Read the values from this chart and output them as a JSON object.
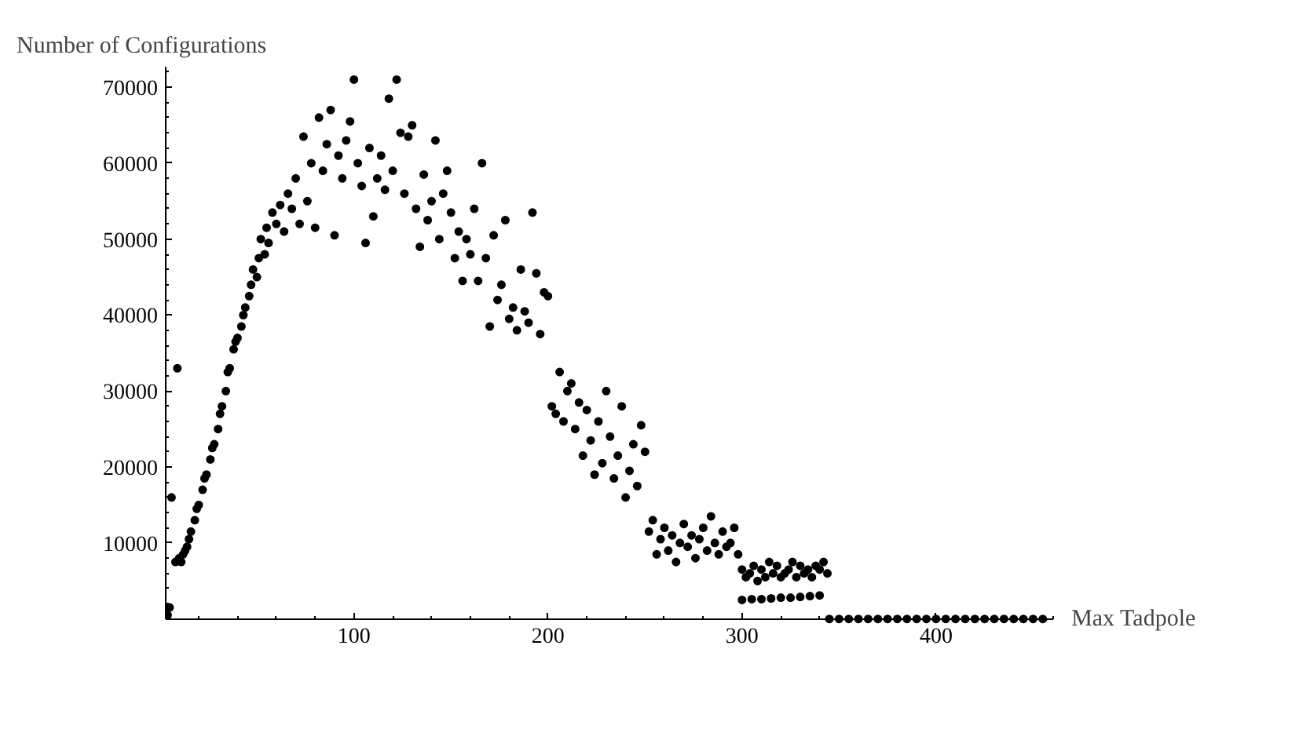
{
  "chart_data": {
    "type": "scatter",
    "xlabel": "Max Tadpole",
    "ylabel": "Number of Configurations",
    "xlim": [
      3,
      460
    ],
    "ylim": [
      0,
      72700
    ],
    "xticks": [
      100,
      200,
      300,
      400
    ],
    "yticks": [
      10000,
      20000,
      30000,
      40000,
      50000,
      60000,
      70000
    ],
    "grid": false,
    "marker": "circle",
    "series": [
      {
        "color": "#000000",
        "x": [
          4,
          5,
          6,
          8,
          9,
          10,
          11,
          12,
          13,
          14,
          15,
          16,
          18,
          19,
          20,
          22,
          23,
          24,
          26,
          27,
          28,
          30,
          31,
          32,
          34,
          35,
          36,
          38,
          39,
          40,
          42,
          43,
          44,
          46,
          47,
          48,
          50,
          51,
          52,
          54,
          55,
          56,
          58,
          60,
          62,
          64,
          66,
          68,
          70,
          72,
          74,
          76,
          78,
          80,
          82,
          84,
          86,
          88,
          90,
          92,
          94,
          96,
          98,
          100,
          102,
          104,
          106,
          108,
          110,
          112,
          114,
          116,
          118,
          120,
          122,
          124,
          126,
          128,
          130,
          132,
          134,
          136,
          138,
          140,
          142,
          144,
          146,
          148,
          150,
          152,
          154,
          156,
          158,
          160,
          162,
          164,
          166,
          168,
          170,
          172,
          174,
          176,
          178,
          180,
          182,
          184,
          186,
          188,
          190,
          192,
          194,
          196,
          198,
          200,
          202,
          204,
          206,
          208,
          210,
          212,
          214,
          216,
          218,
          220,
          222,
          224,
          226,
          228,
          230,
          232,
          234,
          236,
          238,
          240,
          242,
          244,
          246,
          248,
          250,
          252,
          254,
          256,
          258,
          260,
          262,
          264,
          266,
          268,
          270,
          272,
          274,
          276,
          278,
          280,
          282,
          284,
          286,
          288,
          290,
          292,
          294,
          296,
          298,
          300,
          302,
          304,
          306,
          308,
          310,
          312,
          314,
          316,
          318,
          320,
          322,
          324,
          326,
          328,
          330,
          332,
          334,
          336,
          338,
          340,
          342,
          344,
          300,
          305,
          310,
          315,
          320,
          325,
          330,
          335,
          340,
          345,
          350,
          355,
          360,
          365,
          370,
          375,
          380,
          385,
          390,
          395,
          400,
          405,
          410,
          415,
          420,
          425,
          430,
          435,
          440,
          445,
          450,
          455
        ],
        "values": [
          500,
          1500,
          16000,
          7500,
          33000,
          8000,
          7500,
          8500,
          9000,
          9500,
          10500,
          11500,
          13000,
          14500,
          15000,
          17000,
          18500,
          19000,
          21000,
          22500,
          23000,
          25000,
          27000,
          28000,
          30000,
          32500,
          33000,
          35500,
          36500,
          37000,
          38500,
          40000,
          41000,
          42500,
          44000,
          46000,
          45000,
          47500,
          50000,
          48000,
          51500,
          49500,
          53500,
          52000,
          54500,
          51000,
          56000,
          54000,
          58000,
          52000,
          63500,
          55000,
          60000,
          51500,
          66000,
          59000,
          62500,
          67000,
          50500,
          61000,
          58000,
          63000,
          65500,
          71000,
          60000,
          57000,
          49500,
          62000,
          53000,
          58000,
          61000,
          56500,
          68500,
          59000,
          71000,
          64000,
          56000,
          63500,
          65000,
          54000,
          49000,
          58500,
          52500,
          55000,
          63000,
          50000,
          56000,
          59000,
          53500,
          47500,
          51000,
          44500,
          50000,
          48000,
          54000,
          44500,
          60000,
          47500,
          38500,
          50500,
          42000,
          44000,
          52500,
          39500,
          41000,
          38000,
          46000,
          40500,
          39000,
          53500,
          45500,
          37500,
          43000,
          42500,
          28000,
          27000,
          32500,
          26000,
          30000,
          31000,
          25000,
          28500,
          21500,
          27500,
          23500,
          19000,
          26000,
          20500,
          30000,
          24000,
          18500,
          21500,
          28000,
          16000,
          19500,
          23000,
          17500,
          25500,
          22000,
          11500,
          13000,
          8500,
          10500,
          12000,
          9000,
          11000,
          7500,
          10000,
          12500,
          9500,
          11000,
          8000,
          10500,
          12000,
          9000,
          13500,
          10000,
          8500,
          11500,
          9500,
          10000,
          12000,
          8500,
          6500,
          5500,
          6000,
          7000,
          5000,
          6500,
          5500,
          7500,
          6000,
          7000,
          5500,
          6000,
          6500,
          7500,
          5500,
          7000,
          6000,
          6500,
          5500,
          7000,
          6500,
          7500,
          6000,
          2500,
          2600,
          2600,
          2700,
          2800,
          2800,
          2900,
          3000,
          3100,
          0,
          0,
          0,
          0,
          0,
          0,
          0,
          0,
          0,
          0,
          0,
          0,
          0,
          0,
          0,
          0,
          0,
          0,
          0,
          0,
          0,
          0,
          0
        ]
      }
    ]
  }
}
